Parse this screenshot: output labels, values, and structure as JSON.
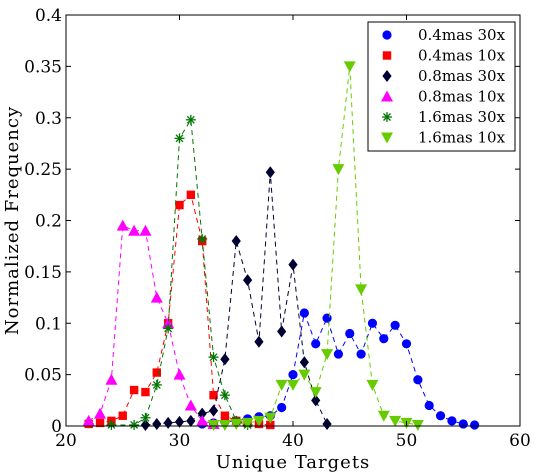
{
  "chart_data": {
    "type": "line",
    "title": "",
    "xlabel": "Unique Targets",
    "ylabel": "Normalized Frequency",
    "xlim": [
      20,
      60
    ],
    "ylim": [
      0,
      0.4
    ],
    "xticks": [
      "20",
      "30",
      "40",
      "50",
      "60"
    ],
    "yticks": [
      "0",
      "0.05",
      "0.1",
      "0.15",
      "0.2",
      "0.25",
      "0.3",
      "0.35",
      "0.4"
    ],
    "grid": false,
    "legend_position": "top-right",
    "series": [
      {
        "name": "0.4mas 30x",
        "color": "#0000ff",
        "marker": "circle",
        "points": [
          [
            32,
            0.002
          ],
          [
            33,
            0.003
          ],
          [
            34,
            0.004
          ],
          [
            35,
            0.005
          ],
          [
            36,
            0.007
          ],
          [
            37,
            0.009
          ],
          [
            38,
            0.01
          ],
          [
            39,
            0.018
          ],
          [
            40,
            0.05
          ],
          [
            41,
            0.11
          ],
          [
            42,
            0.08
          ],
          [
            43,
            0.105
          ],
          [
            44,
            0.07
          ],
          [
            45,
            0.09
          ],
          [
            46,
            0.07
          ],
          [
            47,
            0.1
          ],
          [
            48,
            0.085
          ],
          [
            49,
            0.098
          ],
          [
            50,
            0.08
          ],
          [
            51,
            0.045
          ],
          [
            52,
            0.02
          ],
          [
            53,
            0.01
          ],
          [
            54,
            0.005
          ],
          [
            55,
            0.002
          ],
          [
            56,
            0.001
          ]
        ]
      },
      {
        "name": "0.4mas 10x",
        "color": "#ff0000",
        "marker": "square",
        "points": [
          [
            22,
            0.002
          ],
          [
            23,
            0.003
          ],
          [
            24,
            0.005
          ],
          [
            25,
            0.01
          ],
          [
            26,
            0.035
          ],
          [
            27,
            0.033
          ],
          [
            28,
            0.052
          ],
          [
            29,
            0.1
          ],
          [
            30,
            0.215
          ],
          [
            31,
            0.225
          ],
          [
            32,
            0.18
          ],
          [
            33,
            0.03
          ],
          [
            34,
            0.01
          ],
          [
            35,
            0.005
          ],
          [
            36,
            0.003
          ],
          [
            37,
            0.002
          ],
          [
            38,
            0.001
          ]
        ]
      },
      {
        "name": "0.8mas 30x",
        "color": "#000033",
        "marker": "diamond",
        "points": [
          [
            27,
            0.001
          ],
          [
            28,
            0.002
          ],
          [
            29,
            0.003
          ],
          [
            30,
            0.004
          ],
          [
            31,
            0.005
          ],
          [
            32,
            0.012
          ],
          [
            33,
            0.015
          ],
          [
            34,
            0.065
          ],
          [
            35,
            0.18
          ],
          [
            36,
            0.142
          ],
          [
            37,
            0.082
          ],
          [
            38,
            0.247
          ],
          [
            39,
            0.092
          ],
          [
            40,
            0.157
          ],
          [
            41,
            0.062
          ],
          [
            42,
            0.025
          ],
          [
            43,
            0.002
          ]
        ]
      },
      {
        "name": "0.8mas 10x",
        "color": "#ff00ff",
        "marker": "triangle-up",
        "points": [
          [
            22,
            0.005
          ],
          [
            23,
            0.012
          ],
          [
            24,
            0.045
          ],
          [
            25,
            0.195
          ],
          [
            26,
            0.19
          ],
          [
            27,
            0.19
          ],
          [
            28,
            0.125
          ],
          [
            29,
            0.1
          ],
          [
            30,
            0.05
          ],
          [
            31,
            0.02
          ],
          [
            32,
            0.005
          ],
          [
            33,
            0.002
          ]
        ]
      },
      {
        "name": "1.6mas 30x",
        "color": "#007700",
        "marker": "asterisk",
        "points": [
          [
            24,
            0.001
          ],
          [
            26,
            0.001
          ],
          [
            27,
            0.008
          ],
          [
            28,
            0.04
          ],
          [
            29,
            0.095
          ],
          [
            30,
            0.28
          ],
          [
            31,
            0.298
          ],
          [
            32,
            0.182
          ],
          [
            33,
            0.067
          ],
          [
            34,
            0.03
          ],
          [
            35,
            0.005
          ],
          [
            36,
            0.001
          ]
        ]
      },
      {
        "name": "1.6mas 10x",
        "color": "#66cc00",
        "marker": "triangle-down",
        "points": [
          [
            33,
            0.001
          ],
          [
            34,
            0.001
          ],
          [
            35,
            0.002
          ],
          [
            36,
            0.003
          ],
          [
            37,
            0.005
          ],
          [
            38,
            0.008
          ],
          [
            39,
            0.04
          ],
          [
            40,
            0.04
          ],
          [
            41,
            0.05
          ],
          [
            42,
            0.033
          ],
          [
            43,
            0.07
          ],
          [
            44,
            0.25
          ],
          [
            45,
            0.35
          ],
          [
            46,
            0.133
          ],
          [
            47,
            0.04
          ],
          [
            48,
            0.01
          ],
          [
            49,
            0.005
          ],
          [
            50,
            0.003
          ],
          [
            51,
            0.001
          ]
        ]
      }
    ]
  }
}
